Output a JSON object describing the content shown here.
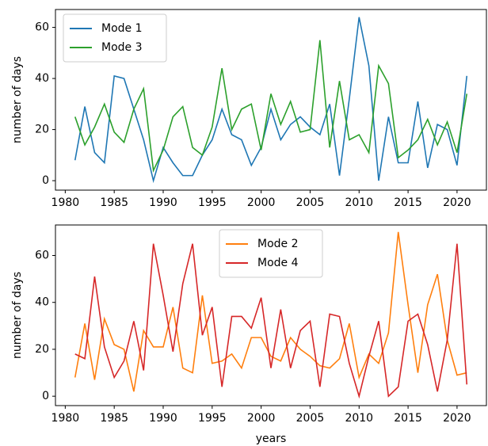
{
  "chart_data": [
    {
      "type": "line",
      "y_label": "number of days",
      "x": [
        1981,
        1982,
        1983,
        1984,
        1985,
        1986,
        1987,
        1988,
        1989,
        1990,
        1991,
        1992,
        1993,
        1994,
        1995,
        1996,
        1997,
        1998,
        1999,
        2000,
        2001,
        2002,
        2003,
        2004,
        2005,
        2006,
        2007,
        2008,
        2009,
        2010,
        2011,
        2012,
        2013,
        2014,
        2015,
        2016,
        2017,
        2018,
        2019,
        2020,
        2021
      ],
      "series": [
        {
          "name": "Mode 1",
          "color": "#1f77b4",
          "values": [
            8,
            29,
            11,
            7,
            41,
            40,
            28,
            16,
            0,
            13,
            7,
            2,
            2,
            10,
            16,
            28,
            18,
            16,
            6,
            13,
            28,
            16,
            22,
            25,
            21,
            18,
            30,
            2,
            32,
            64,
            45,
            0,
            25,
            7,
            7,
            31,
            5,
            22,
            20,
            6,
            41
          ]
        },
        {
          "name": "Mode 3",
          "color": "#2ca02c",
          "values": [
            25,
            14,
            21,
            30,
            19,
            15,
            28,
            36,
            4,
            12,
            25,
            29,
            13,
            10,
            21,
            44,
            20,
            28,
            30,
            12,
            34,
            22,
            31,
            19,
            20,
            55,
            13,
            39,
            16,
            18,
            11,
            45,
            38,
            9,
            12,
            16,
            24,
            14,
            23,
            11,
            34
          ]
        }
      ],
      "xlim": [
        1979,
        2023
      ],
      "xticks": [
        1980,
        1985,
        1990,
        1995,
        2000,
        2005,
        2010,
        2015,
        2020
      ],
      "ylim": [
        -3.7,
        67
      ],
      "yticks": [
        0,
        20,
        40,
        60
      ],
      "legend": "upper-left"
    },
    {
      "type": "line",
      "y_label": "number of days",
      "x_label": "years",
      "x": [
        1981,
        1982,
        1983,
        1984,
        1985,
        1986,
        1987,
        1988,
        1989,
        1990,
        1991,
        1992,
        1993,
        1994,
        1995,
        1996,
        1997,
        1998,
        1999,
        2000,
        2001,
        2002,
        2003,
        2004,
        2005,
        2006,
        2007,
        2008,
        2009,
        2010,
        2011,
        2012,
        2013,
        2014,
        2015,
        2016,
        2017,
        2018,
        2019,
        2020,
        2021
      ],
      "series": [
        {
          "name": "Mode 2",
          "color": "#ff7f0e",
          "values": [
            8,
            31,
            7,
            33,
            22,
            20,
            2,
            28,
            21,
            21,
            38,
            12,
            10,
            43,
            14,
            15,
            18,
            12,
            25,
            25,
            17,
            15,
            25,
            20,
            17,
            13,
            12,
            16,
            31,
            8,
            18,
            14,
            27,
            70,
            39,
            10,
            39,
            52,
            24,
            9,
            10
          ]
        },
        {
          "name": "Mode 4",
          "color": "#d62728",
          "values": [
            18,
            16,
            51,
            21,
            8,
            15,
            32,
            11,
            65,
            43,
            19,
            48,
            65,
            26,
            38,
            4,
            34,
            34,
            29,
            42,
            12,
            37,
            12,
            28,
            32,
            4,
            35,
            34,
            14,
            0,
            17,
            32,
            0,
            4,
            32,
            35,
            22,
            2,
            24,
            65,
            5
          ]
        }
      ],
      "xlim": [
        1979,
        2023
      ],
      "xticks": [
        1980,
        1985,
        1990,
        1995,
        2000,
        2005,
        2010,
        2015,
        2020
      ],
      "ylim": [
        -4,
        73
      ],
      "yticks": [
        0,
        20,
        40,
        60
      ],
      "legend": "upper-center"
    }
  ]
}
